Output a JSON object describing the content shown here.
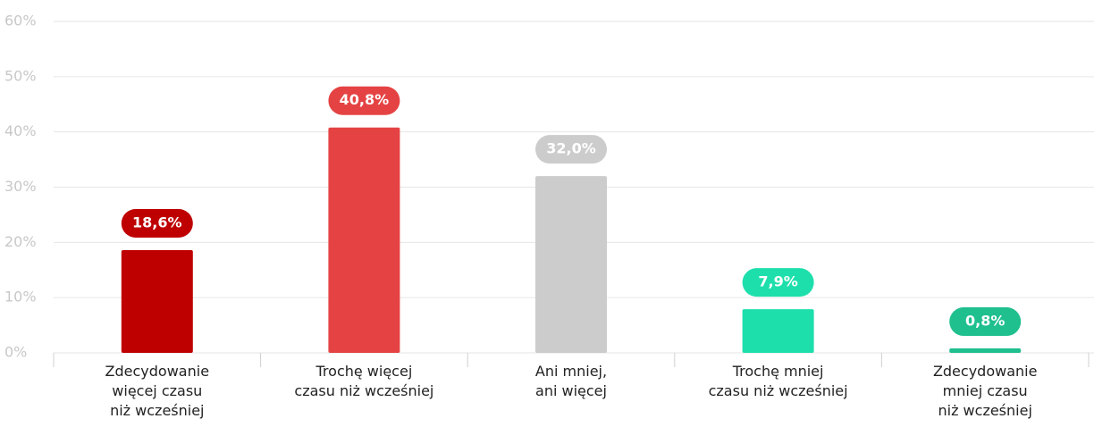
{
  "chart_data": {
    "type": "bar",
    "categories": [
      "Zdecydowanie\nwięcej czasu\nniż wcześniej",
      "Trochę więcej\nczasu niż wcześniej",
      "Ani mniej,\nani więcej",
      "Trochę mniej\nczasu niż wcześniej",
      "Zdecydowanie\nmniej czasu\nniż wcześniej"
    ],
    "values": [
      18.6,
      40.8,
      32.0,
      7.9,
      0.8
    ],
    "value_labels": [
      "18,6%",
      "40,8%",
      "32,0%",
      "7,9%",
      "0,8%"
    ],
    "colors": [
      "#bf0000",
      "#e54343",
      "#cccccc",
      "#1ddfac",
      "#1fbf8e"
    ],
    "ylim": [
      0,
      60
    ],
    "yticks": [
      {
        "value": 0,
        "label": "0%"
      },
      {
        "value": 10,
        "label": "10%"
      },
      {
        "value": 20,
        "label": "20%"
      },
      {
        "value": 30,
        "label": "30%"
      },
      {
        "value": 40,
        "label": "40%"
      },
      {
        "value": 50,
        "label": "50%"
      },
      {
        "value": 60,
        "label": "60%"
      }
    ],
    "grid": true
  }
}
